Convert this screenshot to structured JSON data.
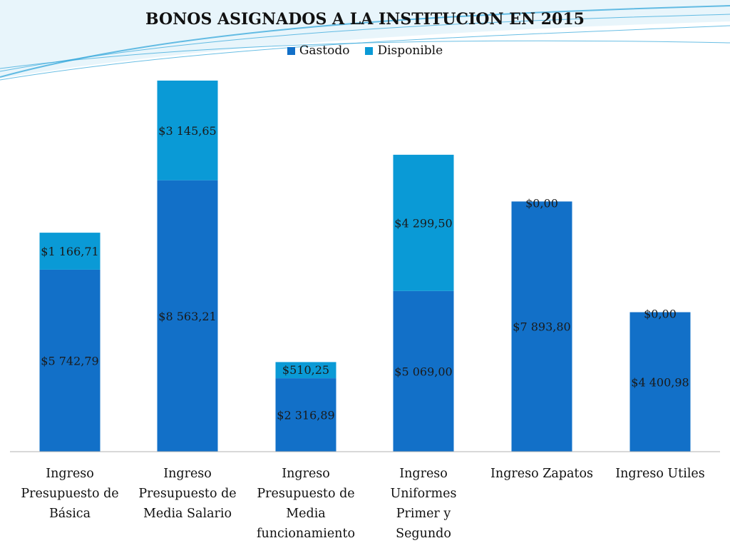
{
  "colors": {
    "gastodo": "#1270c8",
    "disponible": "#0a9ad6",
    "axis": "#b0b0b0",
    "wave": "#2aa3d8"
  },
  "chart_data": {
    "type": "bar",
    "stacked": true,
    "title": "BONOS ASIGNADOS A LA INSTITUCION EN 2015",
    "legend_position": "top",
    "grid": false,
    "categories": [
      "Ingreso\nPresupuesto de\nBásica",
      "Ingreso\nPresupuesto de\nMedia Salario",
      "Ingreso\nPresupuesto de\nMedia\nfuncionamiento",
      "Ingreso\nUniformes\nPrimer y\nSegundo",
      "Ingreso  Zapatos",
      "Ingreso Utiles"
    ],
    "series": [
      {
        "name": "Gastodo",
        "values": [
          5742.79,
          8563.21,
          2316.89,
          5069.0,
          7893.8,
          4400.98
        ],
        "labels": [
          "$5 742,79",
          "$8 563,21",
          "$2 316,89",
          "$5 069,00",
          "$7 893,80",
          "$4 400,98"
        ]
      },
      {
        "name": "Disponible",
        "values": [
          1166.71,
          3145.65,
          510.25,
          4299.5,
          0.0,
          0.0
        ],
        "labels": [
          "$1 166,71",
          "$3 145,65",
          "$510,25",
          "$4 299,50",
          "$0,00",
          "$0,00"
        ]
      }
    ],
    "ylim": [
      0,
      12000
    ]
  }
}
